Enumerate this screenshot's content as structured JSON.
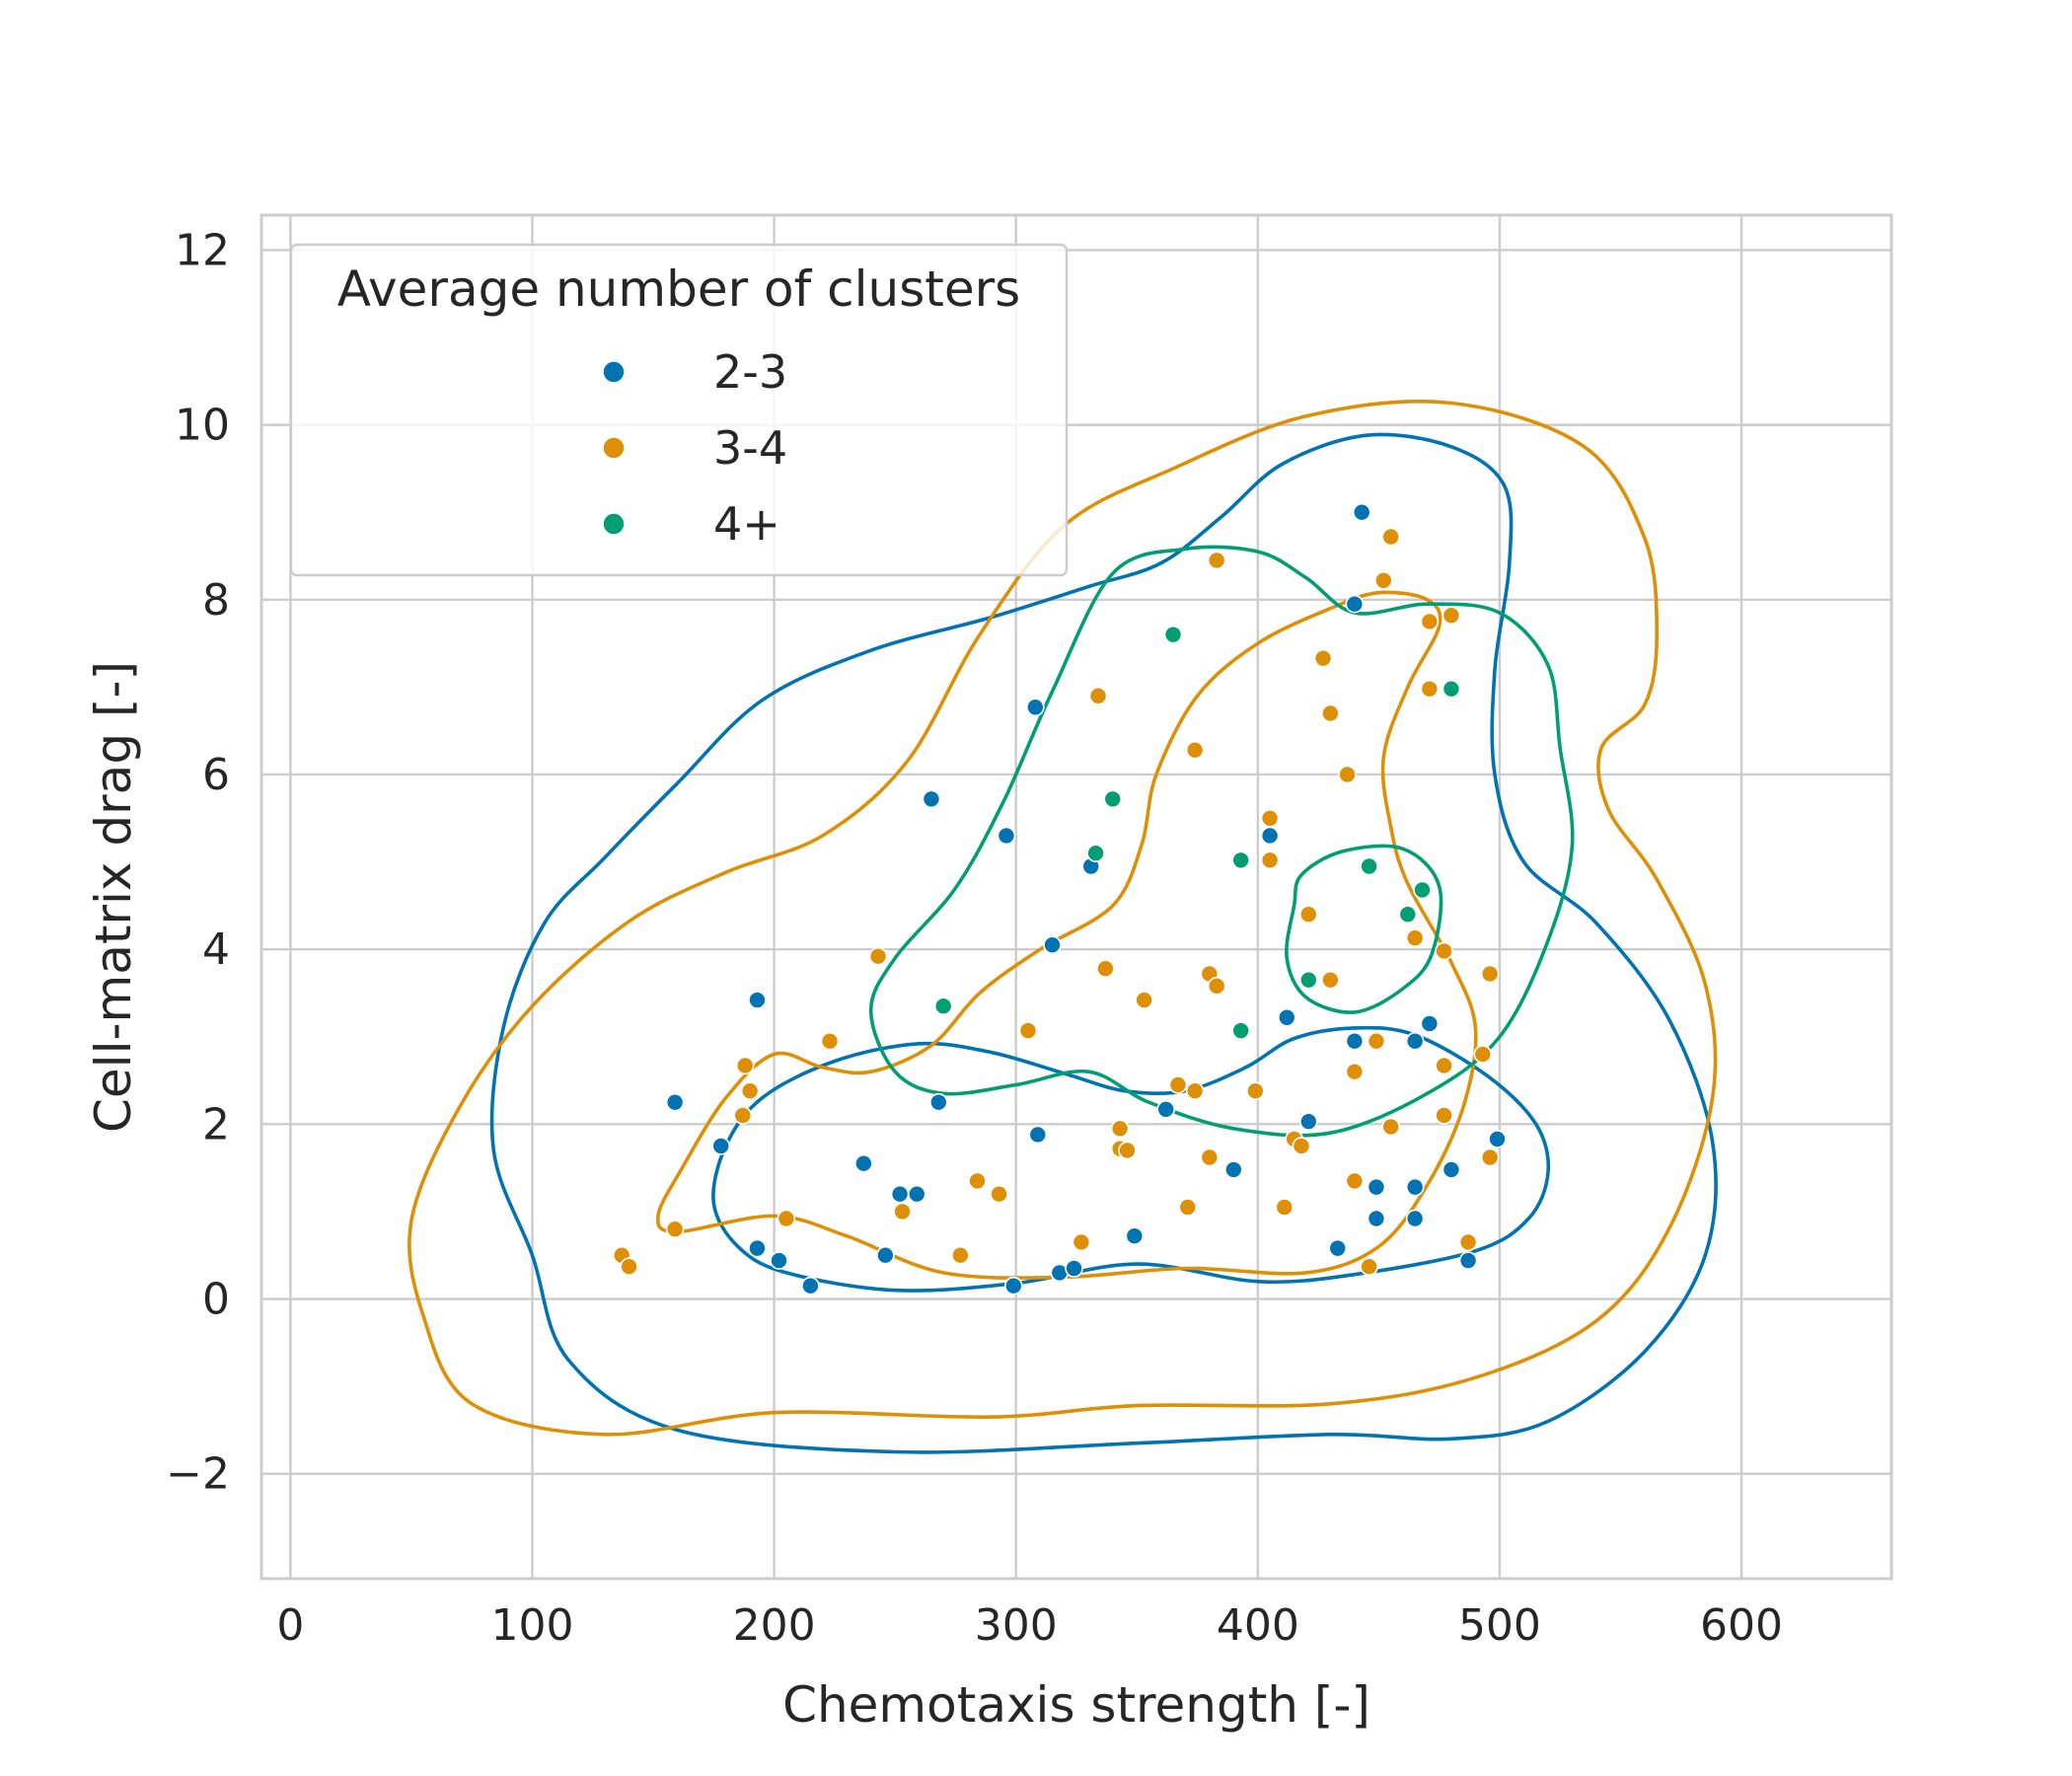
{
  "chart_data": {
    "type": "scatter",
    "xlabel": "Chemotaxis strength [-]",
    "ylabel": "Cell-matrix drag [-]",
    "xlim": [
      -12,
      662
    ],
    "ylim": [
      -3.2,
      12.4
    ],
    "x_ticks": [
      0,
      100,
      200,
      300,
      400,
      500,
      600
    ],
    "x_tick_labels": [
      "0",
      "100",
      "200",
      "300",
      "400",
      "500",
      "600"
    ],
    "y_ticks": [
      -2,
      0,
      2,
      4,
      6,
      8,
      10,
      12
    ],
    "y_tick_labels": [
      "−2",
      "0",
      "2",
      "4",
      "6",
      "8",
      "10",
      "12"
    ],
    "grid": true,
    "legend": {
      "title": "Average number of clusters",
      "placement": "top-left"
    },
    "series": [
      {
        "name": "2-3",
        "color": "#0173b2",
        "points": [
          [
            159,
            2.25
          ],
          [
            178,
            1.75
          ],
          [
            193,
            3.42
          ],
          [
            193,
            0.58
          ],
          [
            202,
            0.44
          ],
          [
            215,
            0.15
          ],
          [
            237,
            1.55
          ],
          [
            246,
            0.5
          ],
          [
            252,
            1.2
          ],
          [
            259,
            1.2
          ],
          [
            265,
            5.72
          ],
          [
            268,
            2.25
          ],
          [
            296,
            5.3
          ],
          [
            299,
            0.15
          ],
          [
            308,
            6.77
          ],
          [
            309,
            1.88
          ],
          [
            315,
            4.05
          ],
          [
            318,
            0.3
          ],
          [
            324,
            0.35
          ],
          [
            331,
            4.95
          ],
          [
            349,
            0.72
          ],
          [
            362,
            2.17
          ],
          [
            390,
            1.48
          ],
          [
            405,
            5.3
          ],
          [
            412,
            3.22
          ],
          [
            421,
            2.03
          ],
          [
            433,
            0.58
          ],
          [
            440,
            7.95
          ],
          [
            440,
            2.95
          ],
          [
            443,
            9.0
          ],
          [
            449,
            1.28
          ],
          [
            449,
            0.92
          ],
          [
            465,
            2.95
          ],
          [
            465,
            1.28
          ],
          [
            465,
            0.92
          ],
          [
            471,
            3.15
          ],
          [
            480,
            1.48
          ],
          [
            487,
            0.44
          ],
          [
            499,
            1.83
          ]
        ],
        "contours": [
          [
            [
              205,
              0.3
            ],
            [
              250,
              0.1
            ],
            [
              300,
              0.18
            ],
            [
              350,
              0.4
            ],
            [
              400,
              0.2
            ],
            [
              440,
              0.28
            ],
            [
              490,
              0.55
            ],
            [
              512,
              0.92
            ],
            [
              520,
              1.45
            ],
            [
              515,
              2.0
            ],
            [
              495,
              2.55
            ],
            [
              465,
              3.02
            ],
            [
              440,
              3.1
            ],
            [
              415,
              2.98
            ],
            [
              395,
              2.65
            ],
            [
              370,
              2.38
            ],
            [
              345,
              2.38
            ],
            [
              320,
              2.58
            ],
            [
              290,
              2.82
            ],
            [
              260,
              2.92
            ],
            [
              225,
              2.72
            ],
            [
              195,
              2.3
            ],
            [
              180,
              1.75
            ],
            [
              175,
              1.1
            ],
            [
              185,
              0.6
            ]
          ],
          [
            [
              100,
              0.5
            ],
            [
              115,
              -0.7
            ],
            [
              160,
              -1.5
            ],
            [
              250,
              -1.75
            ],
            [
              350,
              -1.65
            ],
            [
              430,
              -1.55
            ],
            [
              480,
              -1.6
            ],
            [
              520,
              -1.4
            ],
            [
              560,
              -0.6
            ],
            [
              585,
              0.5
            ],
            [
              588,
              1.8
            ],
            [
              570,
              3.2
            ],
            [
              540,
              4.3
            ],
            [
              510,
              5.0
            ],
            [
              498,
              6.0
            ],
            [
              498,
              7.2
            ],
            [
              504,
              8.4
            ],
            [
              502,
              9.3
            ],
            [
              480,
              9.75
            ],
            [
              445,
              9.88
            ],
            [
              410,
              9.55
            ],
            [
              385,
              8.95
            ],
            [
              360,
              8.42
            ],
            [
              330,
              8.15
            ],
            [
              290,
              7.8
            ],
            [
              240,
              7.42
            ],
            [
              195,
              6.85
            ],
            [
              160,
              5.9
            ],
            [
              130,
              5.05
            ],
            [
              105,
              4.3
            ],
            [
              88,
              3.1
            ],
            [
              84,
              1.7
            ]
          ]
        ]
      },
      {
        "name": "3-4",
        "color": "#de8f05",
        "points": [
          [
            137,
            0.5
          ],
          [
            140,
            0.37
          ],
          [
            159,
            0.8
          ],
          [
            187,
            2.1
          ],
          [
            188,
            2.67
          ],
          [
            190,
            2.38
          ],
          [
            205,
            0.92
          ],
          [
            223,
            2.95
          ],
          [
            243,
            3.92
          ],
          [
            253,
            1.0
          ],
          [
            277,
            0.5
          ],
          [
            284,
            1.35
          ],
          [
            293,
            1.2
          ],
          [
            305,
            3.07
          ],
          [
            327,
            0.65
          ],
          [
            334,
            6.9
          ],
          [
            337,
            3.78
          ],
          [
            343,
            1.95
          ],
          [
            343,
            1.72
          ],
          [
            346,
            1.7
          ],
          [
            353,
            3.42
          ],
          [
            367,
            2.45
          ],
          [
            371,
            1.05
          ],
          [
            374,
            6.28
          ],
          [
            374,
            2.38
          ],
          [
            380,
            3.72
          ],
          [
            380,
            1.62
          ],
          [
            383,
            8.45
          ],
          [
            383,
            3.58
          ],
          [
            399,
            2.38
          ],
          [
            405,
            5.5
          ],
          [
            405,
            5.02
          ],
          [
            411,
            1.05
          ],
          [
            415,
            1.83
          ],
          [
            418,
            1.75
          ],
          [
            421,
            4.4
          ],
          [
            427,
            7.33
          ],
          [
            430,
            6.7
          ],
          [
            430,
            3.65
          ],
          [
            437,
            6.0
          ],
          [
            440,
            2.6
          ],
          [
            440,
            1.35
          ],
          [
            446,
            0.37
          ],
          [
            449,
            2.95
          ],
          [
            452,
            8.22
          ],
          [
            455,
            8.72
          ],
          [
            455,
            1.97
          ],
          [
            465,
            4.13
          ],
          [
            471,
            7.75
          ],
          [
            471,
            6.98
          ],
          [
            477,
            3.98
          ],
          [
            477,
            2.67
          ],
          [
            477,
            2.1
          ],
          [
            480,
            7.82
          ],
          [
            487,
            0.65
          ],
          [
            493,
            2.8
          ],
          [
            496,
            3.72
          ],
          [
            496,
            1.62
          ]
        ],
        "contours": [
          [
            [
              160,
              0.77
            ],
            [
              200,
              0.95
            ],
            [
              230,
              0.72
            ],
            [
              270,
              0.3
            ],
            [
              320,
              0.25
            ],
            [
              370,
              0.35
            ],
            [
              420,
              0.3
            ],
            [
              450,
              0.6
            ],
            [
              470,
              1.3
            ],
            [
              485,
              2.2
            ],
            [
              490,
              3.1
            ],
            [
              480,
              3.85
            ],
            [
              462,
              4.75
            ],
            [
              455,
              5.4
            ],
            [
              452,
              6.2
            ],
            [
              462,
              7.0
            ],
            [
              475,
              7.7
            ],
            [
              470,
              8.0
            ],
            [
              450,
              8.08
            ],
            [
              430,
              7.9
            ],
            [
              400,
              7.5
            ],
            [
              375,
              6.9
            ],
            [
              358,
              6.0
            ],
            [
              352,
              5.2
            ],
            [
              340,
              4.5
            ],
            [
              310,
              4.0
            ],
            [
              285,
              3.5
            ],
            [
              265,
              2.9
            ],
            [
              240,
              2.6
            ],
            [
              220,
              2.65
            ],
            [
              200,
              2.8
            ],
            [
              180,
              2.3
            ],
            [
              162,
              1.5
            ],
            [
              152,
              0.95
            ]
          ],
          [
            [
              55,
              -0.2
            ],
            [
              75,
              -1.2
            ],
            [
              130,
              -1.55
            ],
            [
              200,
              -1.3
            ],
            [
              290,
              -1.35
            ],
            [
              350,
              -1.22
            ],
            [
              430,
              -1.2
            ],
            [
              490,
              -0.9
            ],
            [
              540,
              -0.25
            ],
            [
              570,
              0.8
            ],
            [
              588,
              2.3
            ],
            [
              585,
              3.6
            ],
            [
              565,
              4.8
            ],
            [
              545,
              5.6
            ],
            [
              542,
              6.3
            ],
            [
              560,
              6.8
            ],
            [
              565,
              7.6
            ],
            [
              560,
              8.7
            ],
            [
              535,
              9.75
            ],
            [
              480,
              10.25
            ],
            [
              420,
              10.1
            ],
            [
              365,
              9.5
            ],
            [
              320,
              8.85
            ],
            [
              285,
              7.6
            ],
            [
              255,
              6.15
            ],
            [
              220,
              5.3
            ],
            [
              180,
              4.88
            ],
            [
              140,
              4.32
            ],
            [
              100,
              3.35
            ],
            [
              70,
              2.2
            ],
            [
              50,
              0.9
            ]
          ]
        ]
      },
      {
        "name": "4+",
        "color": "#029e73",
        "points": [
          [
            270,
            3.35
          ],
          [
            333,
            5.1
          ],
          [
            340,
            5.72
          ],
          [
            365,
            7.6
          ],
          [
            393,
            5.02
          ],
          [
            393,
            3.07
          ],
          [
            421,
            3.65
          ],
          [
            446,
            4.95
          ],
          [
            462,
            4.4
          ],
          [
            468,
            4.68
          ],
          [
            480,
            6.98
          ]
        ],
        "contours": [
          [
            [
              415,
              4.5
            ],
            [
              418,
              4.85
            ],
            [
              435,
              5.12
            ],
            [
              460,
              5.15
            ],
            [
              475,
              4.72
            ],
            [
              472,
              3.95
            ],
            [
              460,
              3.55
            ],
            [
              440,
              3.28
            ],
            [
              420,
              3.45
            ],
            [
              412,
              3.9
            ]
          ],
          [
            [
              240,
              3.3
            ],
            [
              250,
              3.9
            ],
            [
              275,
              4.7
            ],
            [
              295,
              5.7
            ],
            [
              315,
              6.95
            ],
            [
              340,
              8.3
            ],
            [
              370,
              8.58
            ],
            [
              400,
              8.55
            ],
            [
              420,
              8.25
            ],
            [
              440,
              7.85
            ],
            [
              470,
              7.95
            ],
            [
              500,
              7.85
            ],
            [
              520,
              7.25
            ],
            [
              525,
              6.3
            ],
            [
              530,
              5.2
            ],
            [
              520,
              4.1
            ],
            [
              500,
              3.0
            ],
            [
              470,
              2.35
            ],
            [
              430,
              1.9
            ],
            [
              390,
              1.95
            ],
            [
              355,
              2.25
            ],
            [
              330,
              2.6
            ],
            [
              300,
              2.45
            ],
            [
              270,
              2.35
            ],
            [
              250,
              2.6
            ]
          ]
        ]
      }
    ]
  }
}
